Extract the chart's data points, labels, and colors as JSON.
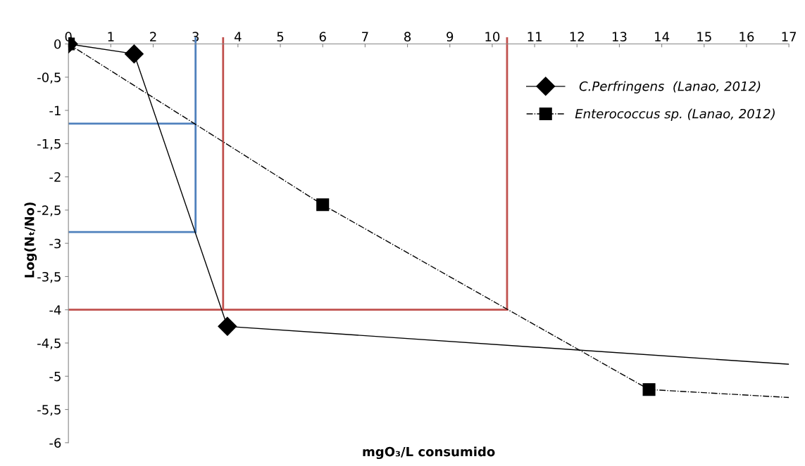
{
  "chart_data": {
    "type": "line",
    "xlabel": "mgO₃/L consumido",
    "ylabel": "Log(Nₜ/No)",
    "xlim": [
      0,
      17
    ],
    "xticks": [
      0,
      1,
      2,
      3,
      4,
      5,
      6,
      7,
      8,
      9,
      10,
      11,
      12,
      13,
      14,
      15,
      16,
      17
    ],
    "ylim": [
      -6,
      0.1
    ],
    "yticks": [
      0,
      {
        "value": -0.5,
        "label": "-0,5"
      },
      {
        "value": -1,
        "label": "-1"
      },
      {
        "value": -1.5,
        "label": "-1,5"
      },
      {
        "value": -2,
        "label": "-2"
      },
      {
        "value": -2.5,
        "label": "-2,5"
      },
      {
        "value": -3,
        "label": "-3"
      },
      {
        "value": -3.5,
        "label": "-3,5"
      },
      {
        "value": -4,
        "label": "-4"
      },
      {
        "value": -4.5,
        "label": "-4,5"
      },
      {
        "value": -5,
        "label": "-5"
      },
      {
        "value": -5.5,
        "label": "-5,5"
      },
      {
        "value": -6,
        "label": "-6"
      }
    ],
    "grid": false,
    "legend": "right",
    "series": [
      {
        "name": " C.Perfringens  (Lanao, 2012)",
        "color": "#000000",
        "x": [
          0,
          1.55,
          3.75
        ],
        "values": [
          0,
          -0.15,
          -4.25
        ],
        "marker": "diamond",
        "line_style": "solid"
      },
      {
        "color": "#000000",
        "x": [
          3.75,
          17
        ],
        "values": [
          -4.25,
          -4.82
        ],
        "line_style": "solid"
      },
      {
        "name": "Enterococcus sp. (Lanao, 2012)",
        "color": "#000000",
        "x": [
          0,
          6,
          13.7
        ],
        "values": [
          0,
          -2.42,
          -5.2
        ],
        "marker": "square",
        "line_style": "dashdot"
      },
      {
        "color": "#000000",
        "x": [
          13.7,
          17
        ],
        "values": [
          -5.2,
          -5.32
        ],
        "line_style": "dashdot"
      },
      {
        "color": "#4f81bd",
        "x": [
          0,
          3
        ],
        "values": [
          -1.2,
          -1.2
        ],
        "line_style": "solid"
      },
      {
        "color": "#4f81bd",
        "x": [
          0,
          3
        ],
        "values": [
          -2.83,
          -2.83
        ],
        "line_style": "solid"
      },
      {
        "color": "#4f81bd",
        "x": [
          3,
          3
        ],
        "values": [
          0.1,
          -2.83
        ],
        "line_style": "solid"
      },
      {
        "color": "#c0504d",
        "x": [
          0,
          10.35
        ],
        "values": [
          -4,
          -4
        ],
        "line_style": "solid"
      },
      {
        "color": "#c0504d",
        "x": [
          3.65,
          3.65
        ],
        "values": [
          0.1,
          -4
        ],
        "line_style": "solid"
      },
      {
        "color": "#c0504d",
        "x": [
          10.35,
          10.35
        ],
        "values": [
          0.1,
          -4
        ],
        "line_style": "solid"
      }
    ]
  }
}
